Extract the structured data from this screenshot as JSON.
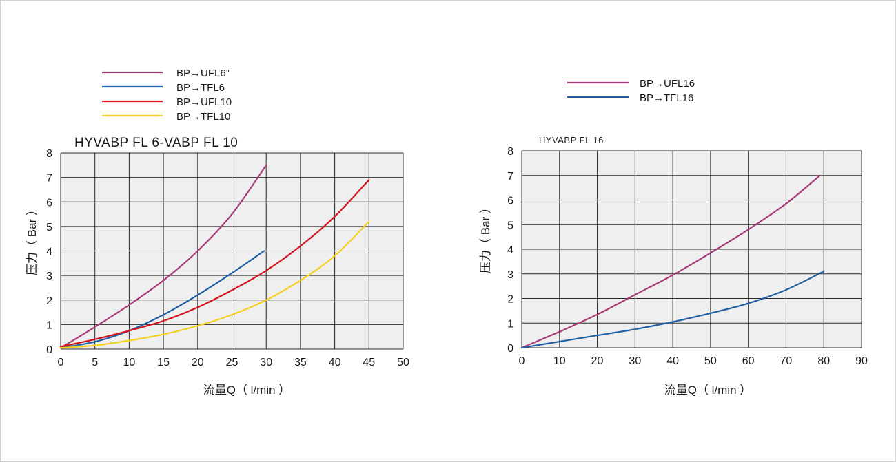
{
  "colors": {
    "purple": "#a83a78",
    "blue": "#1f5fa3",
    "red": "#d4121c",
    "yellow": "#f4d023",
    "plot_bg": "#efefef",
    "grid": "#2a2a2a"
  },
  "chart_data": [
    {
      "type": "line",
      "title": "HYVABP FL 6-VABP FL 10",
      "xlabel": "流量Q（ l/min ）",
      "ylabel": "压力（ Bar ）",
      "xlim": [
        0,
        50
      ],
      "ylim": [
        0,
        8
      ],
      "xticks": [
        "0",
        "5",
        "10",
        "15",
        "20",
        "25",
        "30",
        "35",
        "40",
        "45",
        "50"
      ],
      "yticks": [
        "0",
        "1",
        "2",
        "3",
        "4",
        "5",
        "6",
        "7",
        "8"
      ],
      "grid": true,
      "legend_position": "top-left",
      "series": [
        {
          "name": "BP→UFL6”",
          "color": "#a83a78",
          "x": [
            0,
            5,
            10,
            15,
            20,
            25,
            30
          ],
          "y": [
            0.05,
            0.9,
            1.8,
            2.8,
            4.0,
            5.5,
            7.5
          ]
        },
        {
          "name": "BP→TFL6",
          "color": "#1f5fa3",
          "x": [
            0,
            5,
            10,
            15,
            20,
            25,
            29.7
          ],
          "y": [
            0.05,
            0.3,
            0.75,
            1.4,
            2.2,
            3.1,
            4.0
          ]
        },
        {
          "name": "BP→UFL10",
          "color": "#d4121c",
          "x": [
            0,
            5,
            10,
            15,
            20,
            25,
            30,
            35,
            40,
            45
          ],
          "y": [
            0.1,
            0.4,
            0.75,
            1.15,
            1.7,
            2.4,
            3.2,
            4.2,
            5.4,
            6.9
          ]
        },
        {
          "name": "BP→TFL10",
          "color": "#f4d023",
          "x": [
            0,
            5,
            10,
            15,
            20,
            25,
            30,
            35,
            40,
            45
          ],
          "y": [
            0.05,
            0.15,
            0.35,
            0.6,
            0.95,
            1.4,
            2.0,
            2.8,
            3.8,
            5.2
          ]
        }
      ]
    },
    {
      "type": "line",
      "title": "HYVABP FL 16",
      "xlabel": "流量Q（ l/min ）",
      "ylabel": "压力（ Bar ）",
      "xlim": [
        0,
        90
      ],
      "ylim": [
        0,
        8
      ],
      "xticks": [
        "0",
        "10",
        "20",
        "30",
        "40",
        "50",
        "60",
        "70",
        "80",
        "90"
      ],
      "yticks": [
        "0",
        "1",
        "2",
        "3",
        "4",
        "5",
        "6",
        "7",
        "8"
      ],
      "grid": true,
      "legend_position": "top-center",
      "series": [
        {
          "name": "BP→UFL16",
          "color": "#a83a78",
          "x": [
            0,
            10,
            20,
            30,
            40,
            50,
            60,
            70,
            79
          ],
          "y": [
            0,
            0.65,
            1.35,
            2.15,
            2.95,
            3.85,
            4.8,
            5.85,
            7.0
          ]
        },
        {
          "name": "BP→TFL16",
          "color": "#1f5fa3",
          "x": [
            0,
            10,
            20,
            30,
            40,
            50,
            60,
            70,
            80
          ],
          "y": [
            0,
            0.25,
            0.5,
            0.75,
            1.05,
            1.4,
            1.8,
            2.35,
            3.1
          ]
        }
      ]
    }
  ]
}
